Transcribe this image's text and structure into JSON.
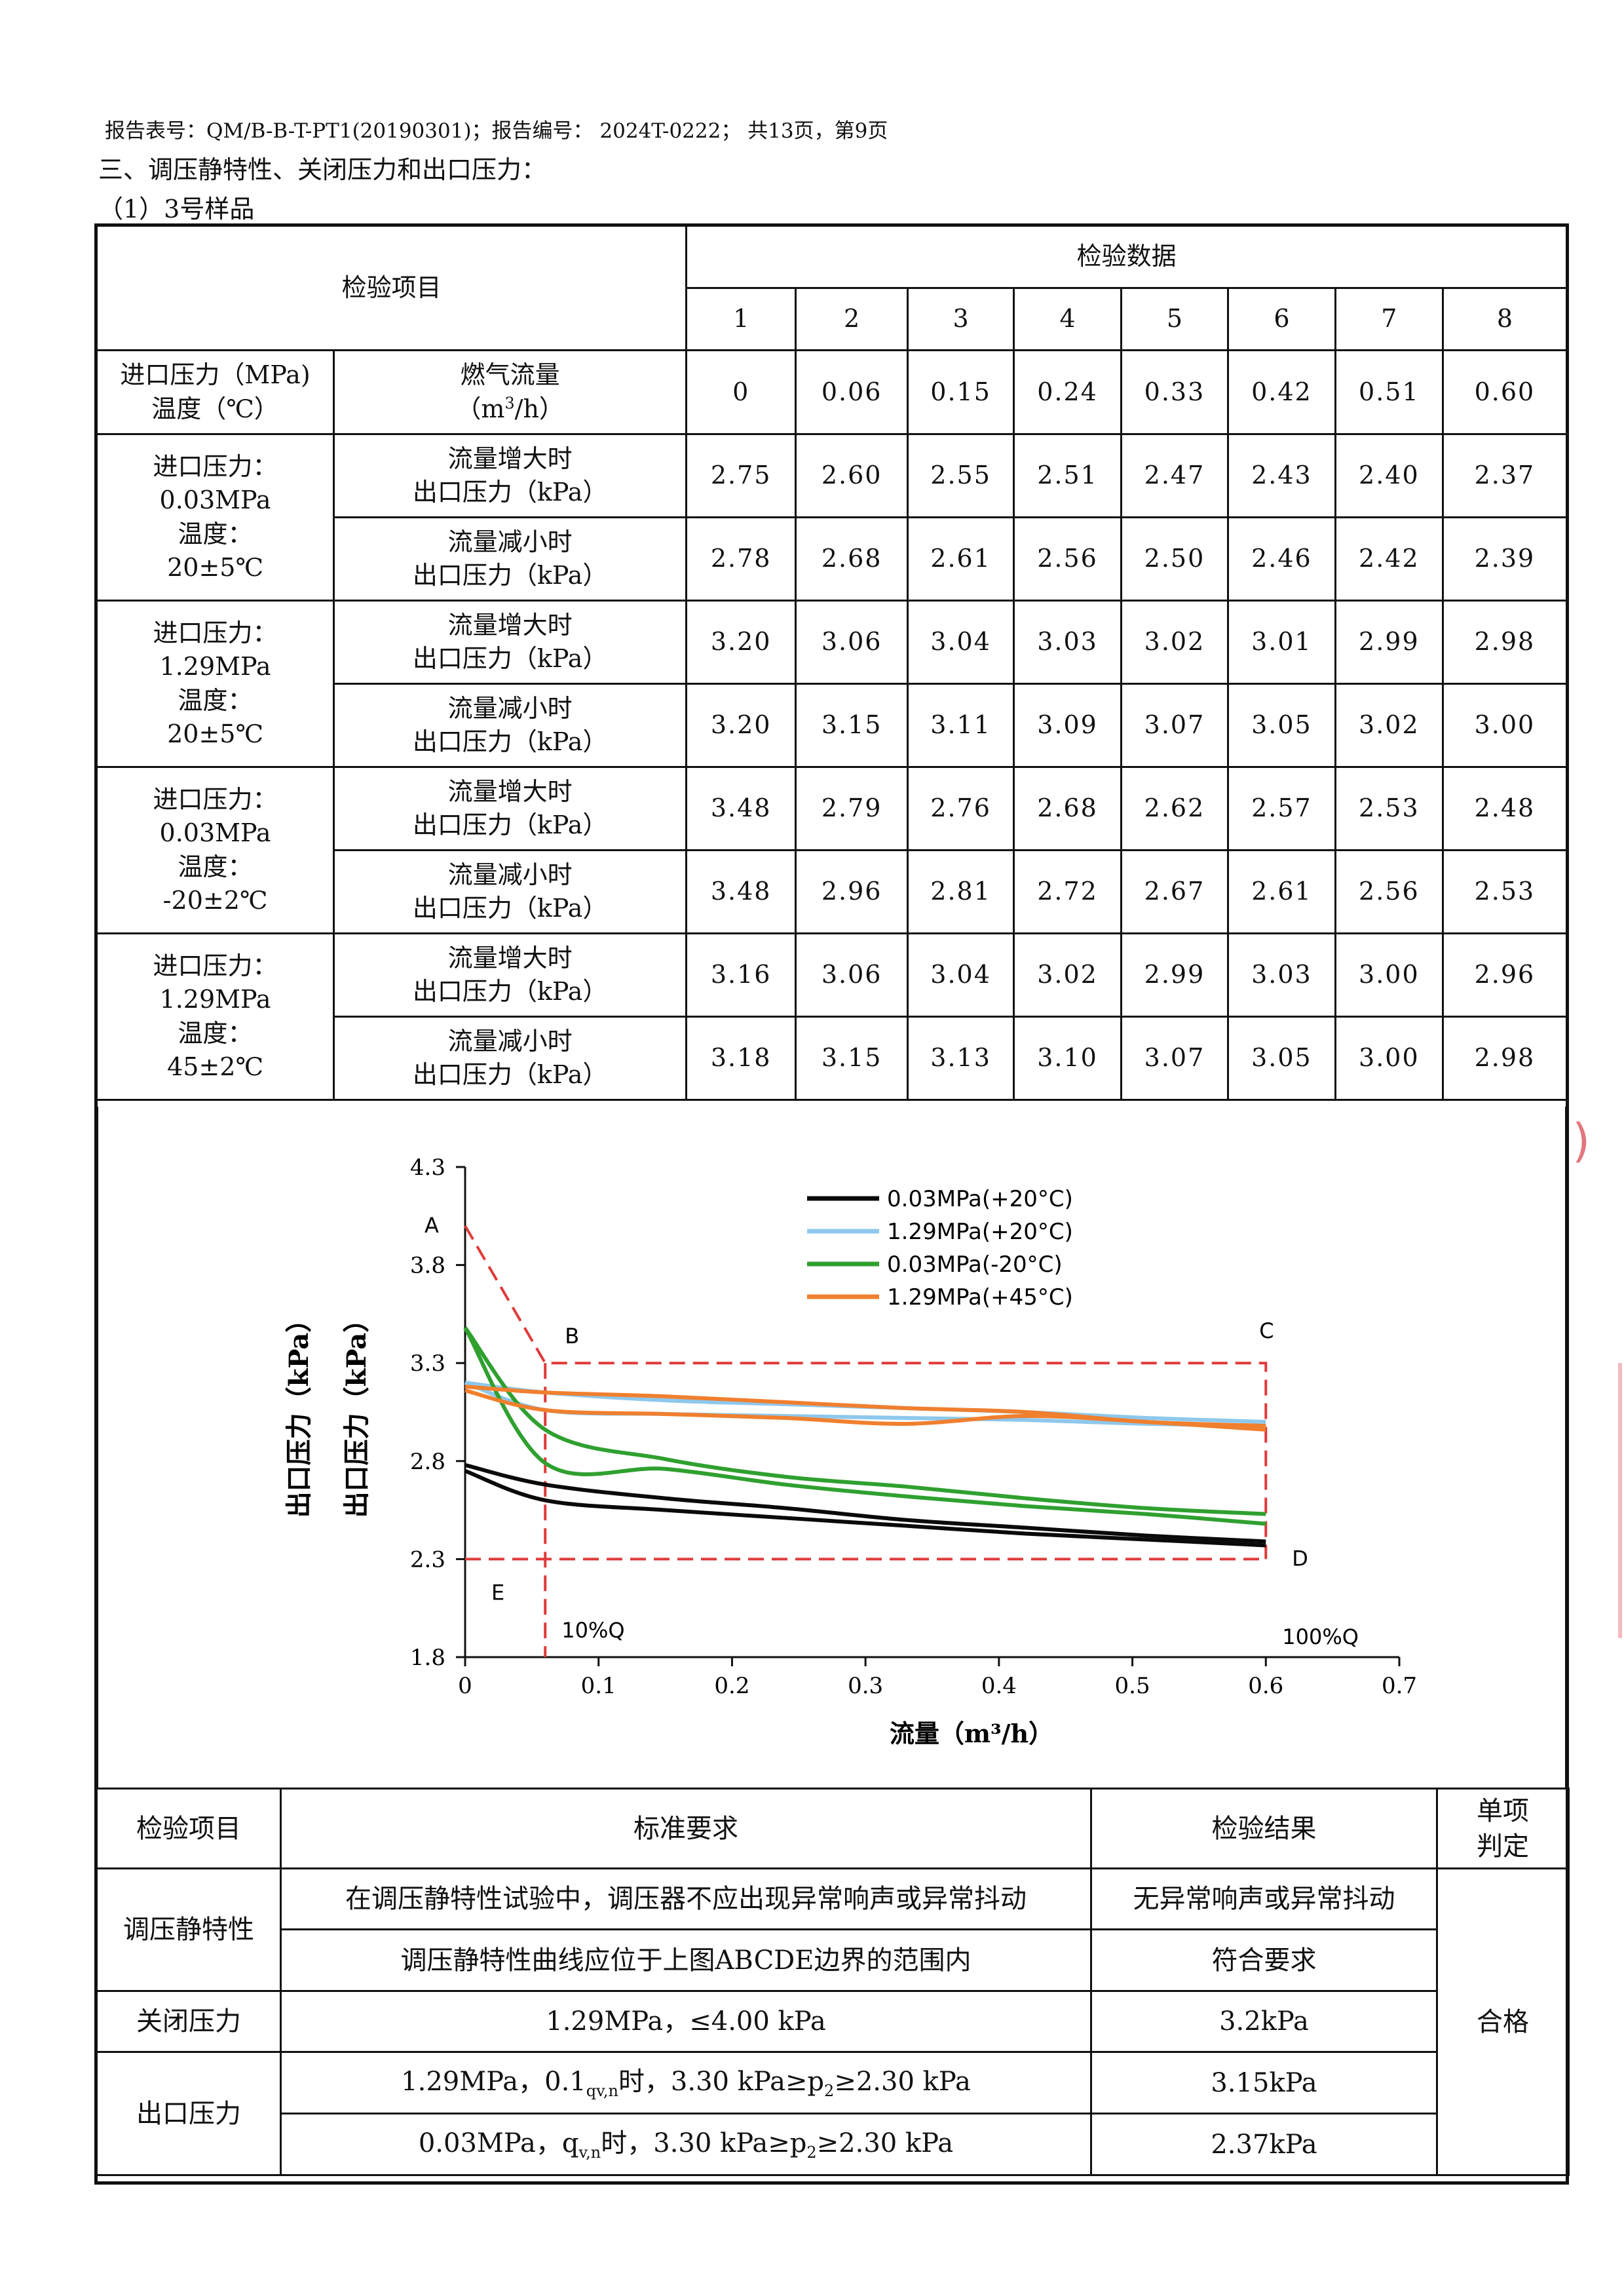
{
  "header": {
    "report_line": "报告表号：QM/B-B-T-PT1(20190301)；报告编号：  2024T-0222；  共13页，第9页",
    "section_title": "三、调压静特性、关闭压力和出口压力：",
    "sample_title": "（1）3号样品"
  },
  "table1": {
    "item_header": "检验项目",
    "data_header": "检验数据",
    "col_numbers": [
      "1",
      "2",
      "3",
      "4",
      "5",
      "6",
      "7",
      "8"
    ],
    "flow_row": {
      "left_line1": "进口压力（MPa)",
      "left_line2": "温度（℃）",
      "mid_line1": "燃气流量",
      "mid_unit_prefix": "（m",
      "mid_unit_sup": "3",
      "mid_unit_suffix": "/h）",
      "values": [
        "0",
        "0.06",
        "0.15",
        "0.24",
        "0.33",
        "0.42",
        "0.51",
        "0.60"
      ]
    },
    "inc_line1": "流量增大时",
    "dec_line1": "流量减小时",
    "out_line2": "出口压力（kPa）",
    "groups": [
      {
        "l1": "进口压力：",
        "l2": "0.03MPa",
        "l3": "温度：",
        "l4": "20±5℃",
        "inc": [
          "2.75",
          "2.60",
          "2.55",
          "2.51",
          "2.47",
          "2.43",
          "2.40",
          "2.37"
        ],
        "dec": [
          "2.78",
          "2.68",
          "2.61",
          "2.56",
          "2.50",
          "2.46",
          "2.42",
          "2.39"
        ]
      },
      {
        "l1": "进口压力：",
        "l2": "1.29MPa",
        "l3": "温度：",
        "l4": "20±5℃",
        "inc": [
          "3.20",
          "3.06",
          "3.04",
          "3.03",
          "3.02",
          "3.01",
          "2.99",
          "2.98"
        ],
        "dec": [
          "3.20",
          "3.15",
          "3.11",
          "3.09",
          "3.07",
          "3.05",
          "3.02",
          "3.00"
        ]
      },
      {
        "l1": "进口压力：",
        "l2": "0.03MPa",
        "l3": "温度：",
        "l4": "-20±2℃",
        "inc": [
          "3.48",
          "2.79",
          "2.76",
          "2.68",
          "2.62",
          "2.57",
          "2.53",
          "2.48"
        ],
        "dec": [
          "3.48",
          "2.96",
          "2.81",
          "2.72",
          "2.67",
          "2.61",
          "2.56",
          "2.53"
        ]
      },
      {
        "l1": "进口压力：",
        "l2": "1.29MPa",
        "l3": "温度：",
        "l4": "45±2℃",
        "inc": [
          "3.16",
          "3.06",
          "3.04",
          "3.02",
          "2.99",
          "3.03",
          "3.00",
          "2.96"
        ],
        "dec": [
          "3.18",
          "3.15",
          "3.13",
          "3.10",
          "3.07",
          "3.05",
          "3.00",
          "2.98"
        ]
      }
    ]
  },
  "chart_data": {
    "type": "line",
    "xlabel": "流量（m³/h）",
    "ylabel": "出口压力（kPa）",
    "ylabel_overprint": "出口压力（kPa）",
    "xlim": [
      0,
      0.7
    ],
    "ylim": [
      1.8,
      4.3
    ],
    "xticks": [
      "0",
      "0.1",
      "0.2",
      "0.3",
      "0.4",
      "0.5",
      "0.6",
      "0.7"
    ],
    "yticks": [
      "1.8",
      "2.3",
      "2.8",
      "3.3",
      "3.8",
      "4.3"
    ],
    "x": [
      0,
      0.06,
      0.15,
      0.24,
      0.33,
      0.42,
      0.51,
      0.6
    ],
    "series": [
      {
        "name": "0.03MPa(+20°C)",
        "color": "#0a0a0a",
        "up": [
          2.75,
          2.6,
          2.55,
          2.51,
          2.47,
          2.43,
          2.4,
          2.37
        ],
        "down": [
          2.78,
          2.68,
          2.61,
          2.56,
          2.5,
          2.46,
          2.42,
          2.39
        ]
      },
      {
        "name": "1.29MPa(+20°C)",
        "color": "#8ec8ec",
        "up": [
          3.2,
          3.06,
          3.04,
          3.03,
          3.02,
          3.01,
          2.99,
          2.98
        ],
        "down": [
          3.2,
          3.15,
          3.11,
          3.09,
          3.07,
          3.05,
          3.02,
          3.0
        ]
      },
      {
        "name": "0.03MPa(-20°C)",
        "color": "#2fa02f",
        "up": [
          3.48,
          2.79,
          2.76,
          2.68,
          2.62,
          2.57,
          2.53,
          2.48
        ],
        "down": [
          3.48,
          2.96,
          2.81,
          2.72,
          2.67,
          2.61,
          2.56,
          2.53
        ]
      },
      {
        "name": "1.29MPa(+45°C)",
        "color": "#f07f2e",
        "up": [
          3.16,
          3.06,
          3.04,
          3.02,
          2.99,
          3.03,
          3.0,
          2.96
        ],
        "down": [
          3.18,
          3.15,
          3.13,
          3.1,
          3.07,
          3.05,
          3.0,
          2.98
        ]
      }
    ],
    "boundary": {
      "color": "#e03a3a",
      "points": [
        {
          "label": "A",
          "x": 0,
          "y": 4.0
        },
        {
          "label": "B",
          "x": 0.06,
          "y": 3.3
        },
        {
          "label": "C",
          "x": 0.6,
          "y": 3.3
        },
        {
          "label": "D",
          "x": 0.6,
          "y": 2.3
        },
        {
          "label": "E",
          "x": 0,
          "y": 2.3
        }
      ],
      "annotations": [
        "10%Q",
        "100%Q"
      ]
    },
    "legend_position": "top-right",
    "grid": false
  },
  "table2": {
    "headers": {
      "item": "检验项目",
      "requirement": "标准要求",
      "result": "检验结果",
      "judgement_l1": "单项",
      "judgement_l2": "判定"
    },
    "rows": {
      "r1_item": "调压静特性",
      "r1a_req": "在调压静特性试验中，调压器不应出现异常响声或异常抖动",
      "r1a_res": "无异常响声或异常抖动",
      "r1b_req": "调压静特性曲线应位于上图ABCDE边界的范围内",
      "r1b_res": "符合要求",
      "r2_item": "关闭压力",
      "r2_req": "1.29MPa，≤4.00 kPa",
      "r2_res": "3.2kPa",
      "r3_item": "出口压力",
      "r3a_req_pre": "1.29MPa，0.1",
      "r3a_req_sub": "qv,n",
      "r3a_req_post": "时，3.30 kPa≥p",
      "r3a_req_sub2": "2",
      "r3a_req_end": "≥2.30 kPa",
      "r3a_res": "3.15kPa",
      "r3b_req_pre": "0.03MPa，q",
      "r3b_req_sub": "v,n",
      "r3b_req_post": "时，3.30 kPa≥p",
      "r3b_req_sub2": "2",
      "r3b_req_end": "≥2.30 kPa",
      "r3b_res": "2.37kPa",
      "judgement": "合格"
    }
  }
}
